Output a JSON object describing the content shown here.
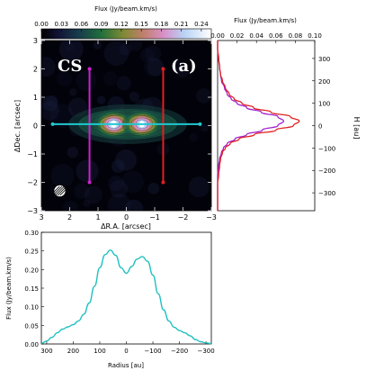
{
  "chart_data": [
    {
      "type": "heatmap",
      "panel_label": "(a)",
      "molecule_label": "CS",
      "colorbar_title": "Flux (Jy/beam.km/s)",
      "colorbar_ticks": [
        "0.00",
        "0.03",
        "0.06",
        "0.09",
        "0.12",
        "0.15",
        "0.18",
        "0.21",
        "0.24"
      ],
      "colorbar_range": [
        0.0,
        0.255
      ],
      "xlabel": "ΔR.A. [arcsec]",
      "ylabel": "ΔDec. [arcsec]",
      "xlim": [
        3,
        -3
      ],
      "ylim": [
        -3,
        3
      ],
      "xticks": [
        "3",
        "2",
        "1",
        "0",
        "−1",
        "−2",
        "−3"
      ],
      "yticks": [
        "−3",
        "−2",
        "−1",
        "0",
        "1",
        "2",
        "3"
      ],
      "blobs": [
        {
          "x": 0.45,
          "y": 0.05,
          "peak": 0.25
        },
        {
          "x": -0.55,
          "y": 0.05,
          "peak": 0.235
        }
      ],
      "cuts": [
        {
          "axis": "vertical",
          "x": 1.3,
          "y_range": [
            -2,
            2
          ],
          "color": "#d020d0"
        },
        {
          "axis": "vertical",
          "x": -1.3,
          "y_range": [
            -2,
            2
          ],
          "color": "#e02020"
        },
        {
          "axis": "horizontal",
          "y": 0.05,
          "x_range": [
            2.6,
            -2.6
          ],
          "color": "#20c8d0"
        }
      ],
      "beam": {
        "x": 2.35,
        "y": -2.3
      }
    },
    {
      "type": "line",
      "title": "Flux (Jy/beam.km/s)",
      "xlim": [
        0,
        0.1
      ],
      "xticks": [
        "0.00",
        "0.02",
        "0.04",
        "0.06",
        "0.08",
        "0.10"
      ],
      "ylabel": "H [au]",
      "ylim": [
        -380,
        380
      ],
      "yticks": [
        "−300",
        "−200",
        "−100",
        "0",
        "100",
        "200",
        "300"
      ],
      "series": [
        {
          "color": "#e02020",
          "h": [
            380,
            340,
            300,
            260,
            230,
            200,
            170,
            140,
            120,
            100,
            80,
            60,
            40,
            20,
            0,
            -20,
            -40,
            -60,
            -80,
            -100,
            -120,
            -150,
            -180,
            -220,
            -260,
            -300,
            -340,
            -380
          ],
          "flux": [
            0.0,
            0.0,
            0.001,
            0.002,
            0.003,
            0.005,
            0.008,
            0.012,
            0.017,
            0.025,
            0.037,
            0.055,
            0.075,
            0.084,
            0.078,
            0.06,
            0.038,
            0.022,
            0.013,
            0.008,
            0.005,
            0.003,
            0.002,
            0.001,
            0.0,
            0.0,
            0.0,
            0.0
          ]
        },
        {
          "color": "#a020d0",
          "h": [
            380,
            340,
            300,
            260,
            230,
            200,
            170,
            140,
            120,
            100,
            80,
            60,
            40,
            20,
            0,
            -20,
            -40,
            -60,
            -80,
            -100,
            -120,
            -150,
            -180,
            -220,
            -260,
            -300,
            -340,
            -380
          ],
          "flux": [
            0.0,
            0.0,
            0.001,
            0.002,
            0.003,
            0.004,
            0.007,
            0.01,
            0.014,
            0.02,
            0.03,
            0.045,
            0.062,
            0.068,
            0.062,
            0.046,
            0.03,
            0.018,
            0.01,
            0.006,
            0.004,
            0.002,
            0.001,
            0.0,
            0.0,
            0.0,
            0.0,
            0.0
          ]
        }
      ]
    },
    {
      "type": "line",
      "xlabel": "Radius [au]",
      "ylabel": "Flux (Jy/beam.km/s)",
      "xlim": [
        320,
        -320
      ],
      "ylim": [
        0,
        0.3
      ],
      "xticks": [
        "300",
        "200",
        "100",
        "0",
        "−100",
        "−200",
        "−300"
      ],
      "yticks": [
        "0.00",
        "0.05",
        "0.10",
        "0.15",
        "0.20",
        "0.25",
        "0.30"
      ],
      "series": [
        {
          "color": "#20c0c0",
          "x": [
            320,
            300,
            280,
            260,
            240,
            220,
            200,
            180,
            160,
            140,
            120,
            100,
            80,
            60,
            40,
            20,
            0,
            -20,
            -40,
            -60,
            -80,
            -100,
            -120,
            -140,
            -160,
            -180,
            -200,
            -220,
            -240,
            -260,
            -280,
            -300,
            -320
          ],
          "y": [
            0.002,
            0.008,
            0.018,
            0.03,
            0.04,
            0.046,
            0.052,
            0.062,
            0.08,
            0.11,
            0.155,
            0.205,
            0.24,
            0.252,
            0.238,
            0.205,
            0.19,
            0.208,
            0.228,
            0.235,
            0.222,
            0.185,
            0.135,
            0.092,
            0.062,
            0.045,
            0.036,
            0.03,
            0.022,
            0.012,
            0.006,
            0.003,
            0.001
          ]
        }
      ]
    }
  ]
}
